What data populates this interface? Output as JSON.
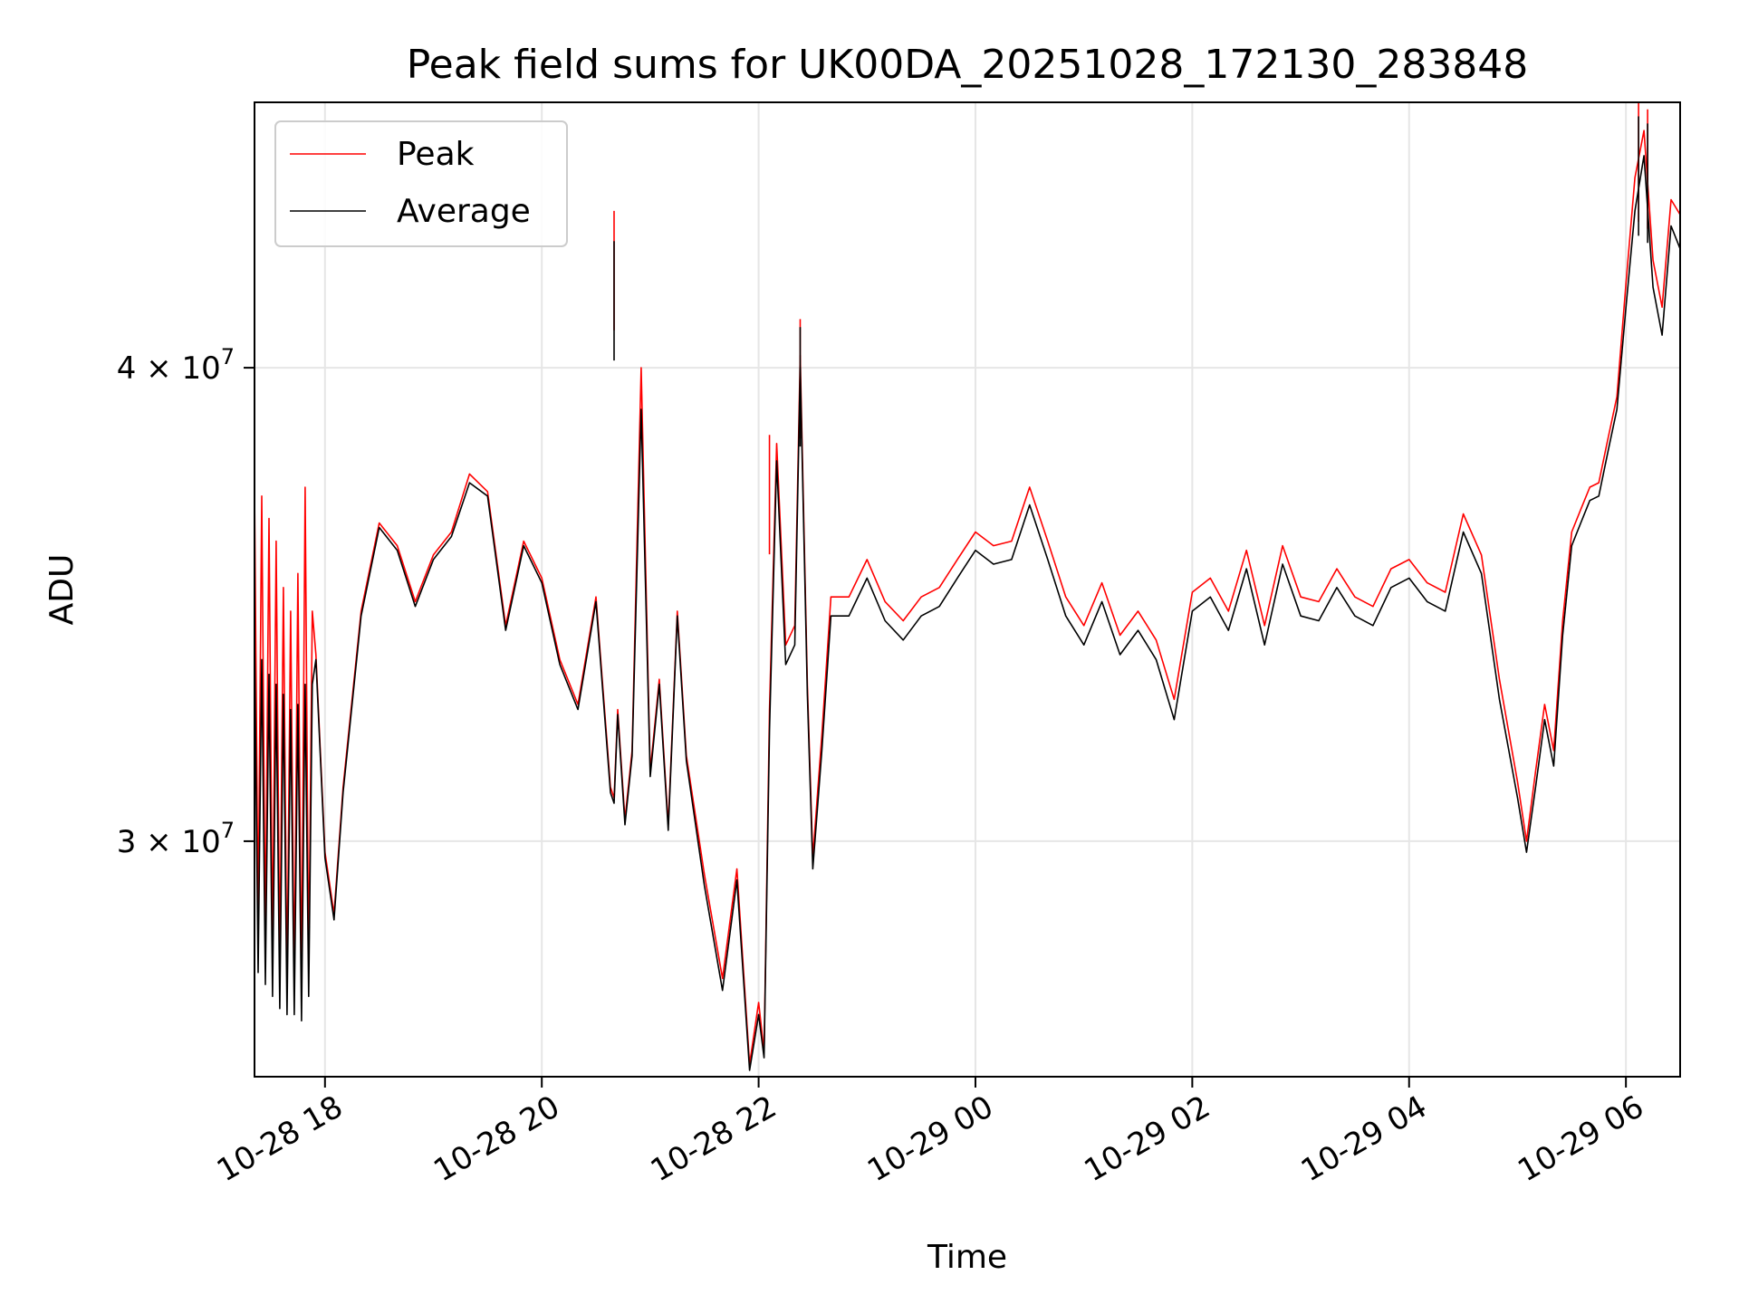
{
  "chart_data": {
    "type": "line",
    "title": "Peak field sums for UK00DA_20251028_172130_283848",
    "xlabel": "Time",
    "ylabel": "ADU",
    "x_type": "datetime",
    "xlim": [
      "2025-10-28 17:21",
      "2025-10-29 06:30"
    ],
    "y_scale": "log",
    "ylim": [
      26000000,
      47000000
    ],
    "grid": true,
    "legend_position": "top-left",
    "x_ticks": [
      {
        "value": "2025-10-28 18:00",
        "label": "10-28 18"
      },
      {
        "value": "2025-10-28 20:00",
        "label": "10-28 20"
      },
      {
        "value": "2025-10-28 22:00",
        "label": "10-28 22"
      },
      {
        "value": "2025-10-29 00:00",
        "label": "10-29 00"
      },
      {
        "value": "2025-10-29 02:00",
        "label": "10-29 02"
      },
      {
        "value": "2025-10-29 04:00",
        "label": "10-29 04"
      },
      {
        "value": "2025-10-29 06:00",
        "label": "10-29 06"
      }
    ],
    "y_ticks": [
      {
        "value": 30000000,
        "label_base": "3 × 10",
        "label_exp": "7"
      },
      {
        "value": 40000000,
        "label_base": "4 × 10",
        "label_exp": "7"
      }
    ],
    "series": [
      {
        "name": "Peak",
        "color": "#ff0000",
        "x": [
          "2025-10-28 17:21",
          "2025-10-28 17:23",
          "2025-10-28 17:25",
          "2025-10-28 17:27",
          "2025-10-28 17:29",
          "2025-10-28 17:31",
          "2025-10-28 17:33",
          "2025-10-28 17:35",
          "2025-10-28 17:37",
          "2025-10-28 17:39",
          "2025-10-28 17:41",
          "2025-10-28 17:43",
          "2025-10-28 17:45",
          "2025-10-28 17:47",
          "2025-10-28 17:49",
          "2025-10-28 17:51",
          "2025-10-28 17:53",
          "2025-10-28 17:55",
          "2025-10-28 18:00",
          "2025-10-28 18:05",
          "2025-10-28 18:10",
          "2025-10-28 18:20",
          "2025-10-28 18:30",
          "2025-10-28 18:40",
          "2025-10-28 18:50",
          "2025-10-28 19:00",
          "2025-10-28 19:10",
          "2025-10-28 19:20",
          "2025-10-28 19:30",
          "2025-10-28 19:40",
          "2025-10-28 19:50",
          "2025-10-28 20:00",
          "2025-10-28 20:10",
          "2025-10-28 20:20",
          "2025-10-28 20:30",
          "2025-10-28 20:38",
          "2025-10-28 20:40",
          "2025-10-28 20:42",
          "2025-10-28 20:46",
          "2025-10-28 20:50",
          "2025-10-28 20:55",
          "2025-10-28 21:00",
          "2025-10-28 21:05",
          "2025-10-28 21:10",
          "2025-10-28 21:15",
          "2025-10-28 21:20",
          "2025-10-28 21:30",
          "2025-10-28 21:40",
          "2025-10-28 21:48",
          "2025-10-28 21:55",
          "2025-10-28 22:00",
          "2025-10-28 22:03",
          "2025-10-28 22:06",
          "2025-10-28 22:10",
          "2025-10-28 22:15",
          "2025-10-28 22:20",
          "2025-10-28 22:23",
          "2025-10-28 22:27",
          "2025-10-28 22:30",
          "2025-10-28 22:35",
          "2025-10-28 22:40",
          "2025-10-28 22:50",
          "2025-10-28 23:00",
          "2025-10-28 23:10",
          "2025-10-28 23:20",
          "2025-10-28 23:30",
          "2025-10-28 23:40",
          "2025-10-28 23:50",
          "2025-10-29 00:00",
          "2025-10-29 00:10",
          "2025-10-29 00:20",
          "2025-10-29 00:30",
          "2025-10-29 00:40",
          "2025-10-29 00:50",
          "2025-10-29 01:00",
          "2025-10-29 01:10",
          "2025-10-29 01:20",
          "2025-10-29 01:30",
          "2025-10-29 01:40",
          "2025-10-29 01:50",
          "2025-10-29 02:00",
          "2025-10-29 02:10",
          "2025-10-29 02:20",
          "2025-10-29 02:30",
          "2025-10-29 02:40",
          "2025-10-29 02:50",
          "2025-10-29 03:00",
          "2025-10-29 03:10",
          "2025-10-29 03:20",
          "2025-10-29 03:30",
          "2025-10-29 03:40",
          "2025-10-29 03:50",
          "2025-10-29 04:00",
          "2025-10-29 04:10",
          "2025-10-29 04:20",
          "2025-10-29 04:30",
          "2025-10-29 04:40",
          "2025-10-29 04:50",
          "2025-10-29 05:00",
          "2025-10-29 05:05",
          "2025-10-29 05:10",
          "2025-10-29 05:15",
          "2025-10-29 05:20",
          "2025-10-29 05:25",
          "2025-10-29 05:30",
          "2025-10-29 05:35",
          "2025-10-29 05:40",
          "2025-10-29 05:45",
          "2025-10-29 05:50",
          "2025-10-29 05:55",
          "2025-10-29 06:00",
          "2025-10-29 06:05",
          "2025-10-29 06:10",
          "2025-10-29 06:15",
          "2025-10-29 06:20",
          "2025-10-29 06:25",
          "2025-10-29 06:30"
        ],
        "values": [
          37200000,
          28500000,
          37000000,
          28200000,
          36500000,
          28000000,
          36000000,
          27800000,
          35000000,
          27500000,
          34500000,
          27500000,
          35300000,
          27400000,
          37200000,
          27800000,
          34500000,
          33600000,
          29800000,
          28700000,
          31000000,
          34500000,
          36400000,
          35900000,
          34700000,
          35700000,
          36200000,
          37500000,
          37100000,
          34200000,
          36000000,
          35200000,
          33500000,
          32600000,
          34800000,
          31000000,
          30800000,
          32500000,
          30400000,
          31700000,
          40000000,
          31300000,
          33100000,
          30300000,
          34500000,
          31600000,
          29400000,
          27600000,
          29500000,
          26200000,
          27200000,
          26400000,
          32500000,
          38200000,
          33800000,
          34200000,
          40300000,
          33000000,
          29700000,
          32000000,
          34800000,
          34800000,
          35600000,
          34700000,
          34300000,
          34800000,
          35000000,
          35600000,
          36200000,
          35900000,
          36000000,
          37200000,
          36000000,
          34800000,
          34200000,
          35100000,
          34000000,
          34500000,
          33900000,
          32700000,
          34900000,
          35200000,
          34500000,
          35800000,
          34200000,
          35900000,
          34800000,
          34700000,
          35400000,
          34800000,
          34600000,
          35400000,
          35600000,
          35100000,
          34900000,
          36600000,
          35700000,
          33100000,
          31100000,
          30000000,
          31300000,
          32600000,
          31700000,
          34300000,
          36200000,
          36700000,
          37200000,
          37300000,
          38300000,
          39300000,
          42100000,
          44900000,
          46200000,
          42700000,
          41500000,
          44300000,
          43900000
        ],
        "spikes": [
          {
            "x": "2025-10-28 20:40",
            "value": 44000000
          },
          {
            "x": "2025-10-28 22:06",
            "value": 38400000
          },
          {
            "x": "2025-10-28 22:23",
            "value": 41200000
          },
          {
            "x": "2025-10-29 06:07",
            "value": 47000000
          },
          {
            "x": "2025-10-29 06:12",
            "value": 46800000
          }
        ]
      },
      {
        "name": "Average",
        "color": "#000000",
        "x": [
          "2025-10-28 17:21",
          "2025-10-28 17:23",
          "2025-10-28 17:25",
          "2025-10-28 17:27",
          "2025-10-28 17:29",
          "2025-10-28 17:31",
          "2025-10-28 17:33",
          "2025-10-28 17:35",
          "2025-10-28 17:37",
          "2025-10-28 17:39",
          "2025-10-28 17:41",
          "2025-10-28 17:43",
          "2025-10-28 17:45",
          "2025-10-28 17:47",
          "2025-10-28 17:49",
          "2025-10-28 17:51",
          "2025-10-28 17:53",
          "2025-10-28 17:55",
          "2025-10-28 18:00",
          "2025-10-28 18:05",
          "2025-10-28 18:10",
          "2025-10-28 18:20",
          "2025-10-28 18:30",
          "2025-10-28 18:40",
          "2025-10-28 18:50",
          "2025-10-28 19:00",
          "2025-10-28 19:10",
          "2025-10-28 19:20",
          "2025-10-28 19:30",
          "2025-10-28 19:40",
          "2025-10-28 19:50",
          "2025-10-28 20:00",
          "2025-10-28 20:10",
          "2025-10-28 20:20",
          "2025-10-28 20:30",
          "2025-10-28 20:38",
          "2025-10-28 20:40",
          "2025-10-28 20:42",
          "2025-10-28 20:46",
          "2025-10-28 20:50",
          "2025-10-28 20:55",
          "2025-10-28 21:00",
          "2025-10-28 21:05",
          "2025-10-28 21:10",
          "2025-10-28 21:15",
          "2025-10-28 21:20",
          "2025-10-28 21:30",
          "2025-10-28 21:40",
          "2025-10-28 21:48",
          "2025-10-28 21:55",
          "2025-10-28 22:00",
          "2025-10-28 22:03",
          "2025-10-28 22:06",
          "2025-10-28 22:10",
          "2025-10-28 22:15",
          "2025-10-28 22:20",
          "2025-10-28 22:23",
          "2025-10-28 22:27",
          "2025-10-28 22:30",
          "2025-10-28 22:35",
          "2025-10-28 22:40",
          "2025-10-28 22:50",
          "2025-10-28 23:00",
          "2025-10-28 23:10",
          "2025-10-28 23:20",
          "2025-10-28 23:30",
          "2025-10-28 23:40",
          "2025-10-28 23:50",
          "2025-10-29 00:00",
          "2025-10-29 00:10",
          "2025-10-29 00:20",
          "2025-10-29 00:30",
          "2025-10-29 00:40",
          "2025-10-29 00:50",
          "2025-10-29 01:00",
          "2025-10-29 01:10",
          "2025-10-29 01:20",
          "2025-10-29 01:30",
          "2025-10-29 01:40",
          "2025-10-29 01:50",
          "2025-10-29 02:00",
          "2025-10-29 02:10",
          "2025-10-29 02:20",
          "2025-10-29 02:30",
          "2025-10-29 02:40",
          "2025-10-29 02:50",
          "2025-10-29 03:00",
          "2025-10-29 03:10",
          "2025-10-29 03:20",
          "2025-10-29 03:30",
          "2025-10-29 03:40",
          "2025-10-29 03:50",
          "2025-10-29 04:00",
          "2025-10-29 04:10",
          "2025-10-29 04:20",
          "2025-10-29 04:30",
          "2025-10-29 04:40",
          "2025-10-29 04:50",
          "2025-10-29 05:00",
          "2025-10-29 05:05",
          "2025-10-29 05:10",
          "2025-10-29 05:15",
          "2025-10-29 05:20",
          "2025-10-29 05:25",
          "2025-10-29 05:30",
          "2025-10-29 05:35",
          "2025-10-29 05:40",
          "2025-10-29 05:45",
          "2025-10-29 05:50",
          "2025-10-29 05:55",
          "2025-10-29 06:00",
          "2025-10-29 06:05",
          "2025-10-29 06:10",
          "2025-10-29 06:15",
          "2025-10-29 06:20",
          "2025-10-29 06:25",
          "2025-10-29 06:30"
        ],
        "values": [
          34000000,
          27700000,
          33500000,
          27500000,
          33200000,
          27300000,
          33000000,
          27100000,
          32800000,
          27000000,
          32500000,
          27000000,
          32600000,
          26900000,
          33000000,
          27300000,
          33000000,
          33500000,
          29700000,
          28600000,
          30900000,
          34400000,
          36300000,
          35800000,
          34600000,
          35600000,
          36100000,
          37300000,
          37000000,
          34100000,
          35900000,
          35100000,
          33400000,
          32500000,
          34700000,
          30900000,
          30700000,
          32400000,
          30300000,
          31600000,
          39000000,
          31200000,
          33000000,
          30200000,
          34400000,
          31500000,
          29200000,
          27400000,
          29300000,
          26100000,
          27000000,
          26300000,
          32100000,
          37800000,
          33400000,
          33800000,
          40000000,
          32800000,
          29500000,
          31700000,
          34400000,
          34400000,
          35200000,
          34300000,
          33900000,
          34400000,
          34600000,
          35200000,
          35800000,
          35500000,
          35600000,
          36800000,
          35600000,
          34400000,
          33800000,
          34700000,
          33600000,
          34100000,
          33500000,
          32300000,
          34500000,
          34800000,
          34100000,
          35400000,
          33800000,
          35500000,
          34400000,
          34300000,
          35000000,
          34400000,
          34200000,
          35000000,
          35200000,
          34700000,
          34500000,
          36200000,
          35300000,
          32700000,
          30800000,
          29800000,
          31000000,
          32300000,
          31400000,
          34000000,
          35900000,
          36400000,
          36900000,
          37000000,
          38000000,
          39000000,
          41500000,
          44000000,
          45500000,
          42000000,
          40800000,
          43600000,
          43000000
        ],
        "spikes": [
          {
            "x": "2025-10-28 20:40",
            "value": 43200000
          },
          {
            "x": "2025-10-28 22:23",
            "value": 41000000
          },
          {
            "x": "2025-10-29 06:07",
            "value": 46600000
          },
          {
            "x": "2025-10-29 06:12",
            "value": 46400000
          }
        ]
      }
    ]
  }
}
